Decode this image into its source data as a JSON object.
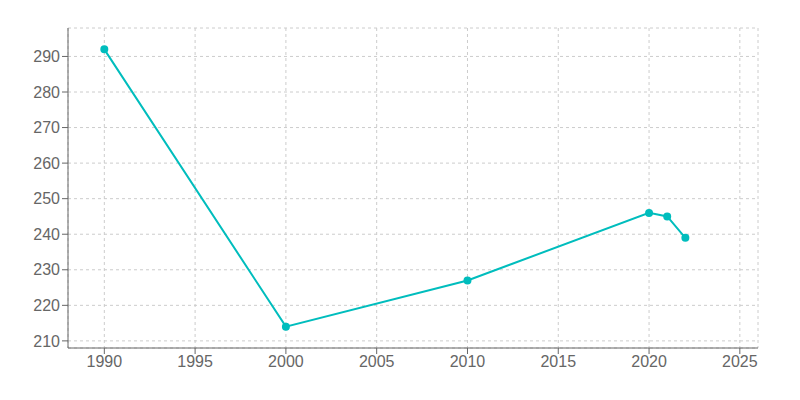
{
  "chart_data": {
    "type": "line",
    "x": [
      1990,
      2000,
      2010,
      2020,
      2021,
      2022
    ],
    "values": [
      292,
      214,
      227,
      246,
      245,
      239
    ],
    "color": "#00BDBD",
    "marker": "circle",
    "xlim": [
      1988,
      2026
    ],
    "ylim": [
      208,
      298
    ],
    "xticks": [
      1990,
      1995,
      2000,
      2005,
      2010,
      2015,
      2020,
      2025
    ],
    "yticks": [
      210,
      220,
      230,
      240,
      250,
      260,
      270,
      280,
      290
    ],
    "grid": true
  }
}
